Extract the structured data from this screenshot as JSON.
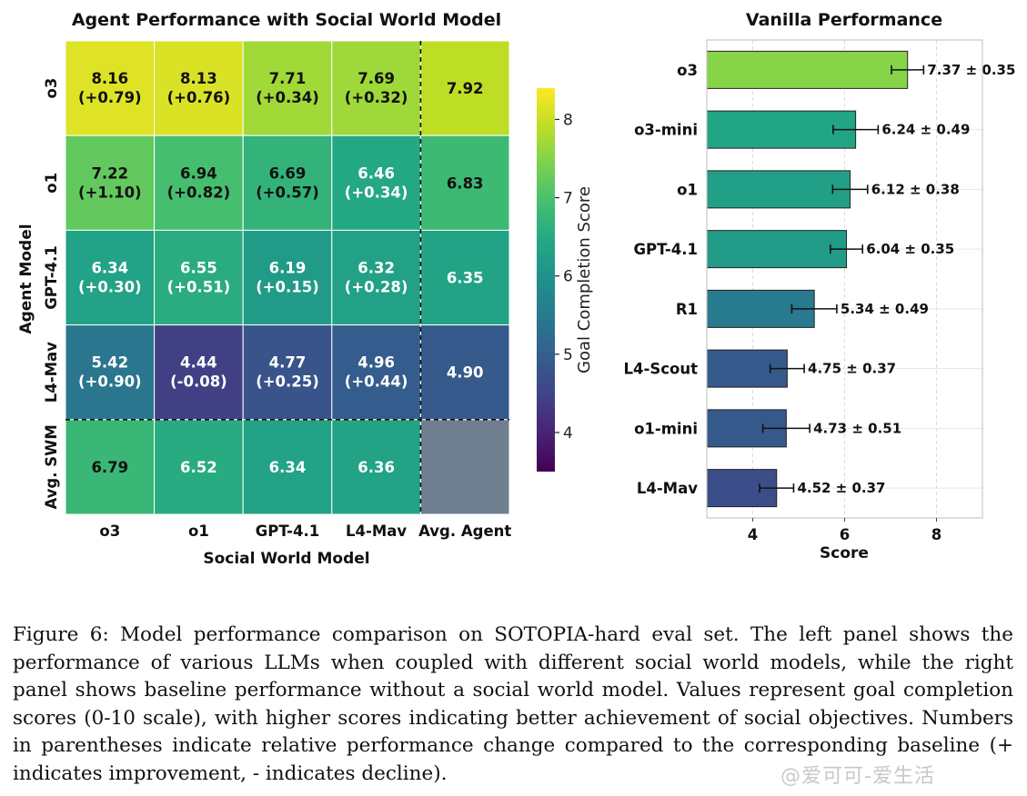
{
  "chart_data": [
    {
      "type": "heatmap",
      "title": "Agent Performance with Social World Model",
      "xlabel": "Social World Model",
      "ylabel": "Agent Model",
      "x_categories": [
        "o3",
        "o1",
        "GPT-4.1",
        "L4-Mav",
        "Avg. Agent"
      ],
      "y_categories": [
        "o3",
        "o1",
        "GPT-4.1",
        "L4-Mav",
        "Avg. SWM"
      ],
      "values": [
        [
          8.16,
          8.13,
          7.71,
          7.69,
          7.92
        ],
        [
          7.22,
          6.94,
          6.69,
          6.46,
          6.83
        ],
        [
          6.34,
          6.55,
          6.19,
          6.32,
          6.35
        ],
        [
          5.42,
          4.44,
          4.77,
          4.96,
          4.9
        ],
        [
          6.79,
          6.52,
          6.34,
          6.36,
          null
        ]
      ],
      "deltas": [
        [
          "(+0.79)",
          "(+0.76)",
          "(+0.34)",
          "(+0.32)",
          ""
        ],
        [
          "(+1.10)",
          "(+0.82)",
          "(+0.57)",
          "(+0.34)",
          ""
        ],
        [
          "(+0.30)",
          "(+0.51)",
          "(+0.15)",
          "(+0.28)",
          ""
        ],
        [
          "(+0.90)",
          "(-0.08)",
          "(+0.25)",
          "(+0.44)",
          ""
        ],
        [
          "",
          "",
          "",
          "",
          ""
        ]
      ],
      "colorbar": {
        "label": "Goal Completion Score",
        "range": [
          3.5,
          8.4
        ],
        "ticks": [
          4,
          5,
          6,
          7,
          8
        ],
        "colormap": "viridis"
      },
      "empty_cell_color": "#708090"
    },
    {
      "type": "bar",
      "orientation": "horizontal",
      "title": "Vanilla Performance",
      "xlabel": "Score",
      "categories": [
        "o3",
        "o3-mini",
        "o1",
        "GPT-4.1",
        "R1",
        "L4-Scout",
        "o1-mini",
        "L4-Mav"
      ],
      "values": [
        7.37,
        6.24,
        6.12,
        6.04,
        5.34,
        4.75,
        4.73,
        4.52
      ],
      "errors": [
        0.35,
        0.49,
        0.38,
        0.35,
        0.49,
        0.37,
        0.51,
        0.37
      ],
      "labels": [
        "7.37 ± 0.35",
        "6.24 ± 0.49",
        "6.12 ± 0.38",
        "6.04 ± 0.35",
        "5.34 ± 0.49",
        "4.75 ± 0.37",
        "4.73 ± 0.51",
        "4.52 ± 0.37"
      ],
      "xlim": [
        3,
        9
      ],
      "xticks": [
        4,
        6,
        8
      ],
      "grid": true,
      "colormap": "viridis"
    }
  ],
  "caption": "Figure 6: Model performance comparison on SOTOPIA-hard eval set. The left panel shows the performance of various LLMs when coupled with different social world models, while the right panel shows baseline performance without a social world model. Values represent goal completion scores (0-10 scale), with higher scores indicating better achievement of social objectives. Numbers in parentheses indicate relative performance change compared to the corresponding baseline (+ indicates improvement, - indicates decline).",
  "watermark": "@爱可可-爱生活"
}
